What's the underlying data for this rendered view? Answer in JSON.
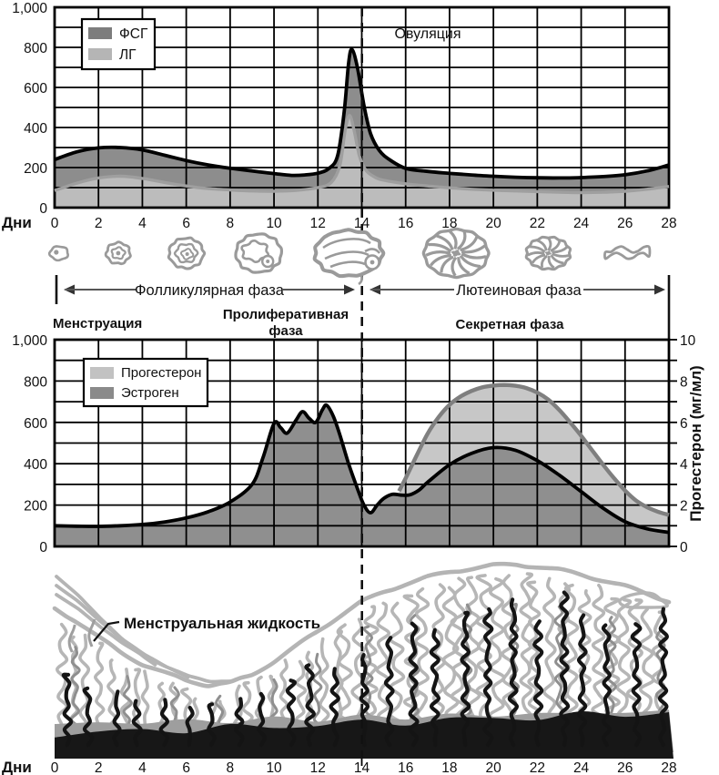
{
  "colors": {
    "fsh_fill": "#8d8d8d",
    "fsh_line": "#000000",
    "lh_fill": "#bcbcbc",
    "lh_line": "#9f9f9f",
    "estrogen_fill": "#8f8f8f",
    "estrogen_line": "#000000",
    "progesterone_fill": "#c7c7c7",
    "progesterone_line": "#7f7f7f",
    "grid": "#000000",
    "text": "#111111",
    "follicle": "#9a9a9a",
    "gland": "#b6b6b6",
    "vessel_black": "#141414",
    "vessel_gray": "#8f8f8f",
    "base_black": "#171717",
    "base_gray": "#9e9e9e",
    "surface": "#b4b4b4"
  },
  "top_chart": {
    "x_label": "Дни",
    "annotation": "Овуляция",
    "y_ticks": [
      "1,000",
      "800",
      "600",
      "400",
      "200",
      "0"
    ],
    "x_ticks": [
      "0",
      "2",
      "4",
      "6",
      "8",
      "10",
      "12",
      "14",
      "16",
      "18",
      "20",
      "22",
      "24",
      "26",
      "28"
    ],
    "legend": [
      {
        "label": "ФСГ",
        "color": "#7d7d7d"
      },
      {
        "label": "ЛГ",
        "color": "#b5b5b5"
      }
    ]
  },
  "mid_chart": {
    "y_ticks": [
      "1,000",
      "800",
      "600",
      "400",
      "200",
      "0"
    ],
    "y2_ticks": [
      "10",
      "8",
      "6",
      "4",
      "2",
      "0"
    ],
    "y2_title": "Прогестерон (мг/мл)",
    "legend": [
      {
        "label": "Прогестерон",
        "color": "#c2c2c2"
      },
      {
        "label": "Эстроген",
        "color": "#8a8a8a"
      }
    ]
  },
  "phases": {
    "follicular": "Фолликулярная фаза",
    "luteal": "Лютеиновая фаза",
    "menstruation": "Менструация",
    "proliferative_line1": "Пролиферативная",
    "proliferative_line2": "фаза",
    "secretory": "Секретная фаза"
  },
  "bottom": {
    "x_label": "Дни",
    "x_ticks": [
      "0",
      "2",
      "4",
      "6",
      "8",
      "10",
      "12",
      "14",
      "16",
      "18",
      "20",
      "22",
      "24",
      "26",
      "28"
    ],
    "fluid_label": "Менструальная жидкость"
  },
  "ovulation_day": 14,
  "follicle_stages": [
    {
      "icon": "primordial-follicle-icon",
      "day": 0.2
    },
    {
      "icon": "primary-follicle-icon",
      "day": 2.9
    },
    {
      "icon": "secondary-follicle-icon",
      "day": 6.0
    },
    {
      "icon": "graafian-follicle-icon",
      "day": 9.3
    },
    {
      "icon": "ovulating-follicle-icon",
      "day": 13.4
    },
    {
      "icon": "corpus-luteum-icon",
      "day": 18.3
    },
    {
      "icon": "corpus-luteum-late-icon",
      "day": 22.5
    },
    {
      "icon": "corpus-albicans-icon",
      "day": 26.1
    }
  ],
  "chart_data": [
    {
      "type": "area",
      "xlim": [
        0,
        28
      ],
      "ylim": [
        0,
        1000
      ],
      "x_label": "Дни",
      "grid": true,
      "legend_position": "top-left",
      "annotations": [
        "Овуляция"
      ],
      "series": [
        {
          "name": "ФСГ",
          "x": [
            0,
            1,
            2,
            3,
            4,
            5,
            6,
            7,
            8,
            9,
            10,
            10.8,
            11.4,
            12,
            12.5,
            12.9,
            13.2,
            13.4,
            13.55,
            13.8,
            14.1,
            14.4,
            14.8,
            15.3,
            16,
            17,
            18,
            19,
            20,
            21,
            22,
            23,
            24,
            25,
            26,
            27,
            28
          ],
          "values": [
            240,
            278,
            298,
            300,
            288,
            262,
            235,
            213,
            197,
            183,
            170,
            161,
            163,
            172,
            195,
            260,
            480,
            720,
            790,
            700,
            510,
            370,
            285,
            237,
            196,
            181,
            171,
            163,
            157,
            152,
            149,
            148,
            150,
            155,
            164,
            183,
            213
          ]
        },
        {
          "name": "ЛГ",
          "x": [
            0,
            1,
            2,
            3,
            4,
            5,
            6,
            7,
            8,
            9,
            10,
            11,
            12,
            12.6,
            13,
            13.25,
            13.45,
            13.65,
            13.9,
            14.2,
            14.6,
            15,
            16,
            17,
            18,
            19,
            20,
            21,
            22,
            23,
            24,
            25,
            26,
            27,
            28
          ],
          "values": [
            85,
            122,
            148,
            157,
            146,
            126,
            108,
            95,
            88,
            83,
            82,
            86,
            100,
            125,
            210,
            390,
            460,
            385,
            255,
            185,
            152,
            137,
            119,
            108,
            99,
            92,
            87,
            83,
            80,
            77,
            75,
            77,
            82,
            92,
            106
          ]
        }
      ]
    },
    {
      "type": "area",
      "xlim": [
        0,
        28
      ],
      "ylim": [
        0,
        1000
      ],
      "y2lim": [
        0,
        10
      ],
      "y2label": "Прогестерон (мг/мл)",
      "grid": true,
      "legend_position": "top-left",
      "series": [
        {
          "name": "Эстроген",
          "x": [
            0,
            1,
            2,
            3,
            4,
            5,
            6,
            7,
            8,
            9,
            9.5,
            10,
            10.3,
            10.6,
            11,
            11.3,
            11.6,
            11.9,
            12.2,
            12.4,
            12.7,
            13,
            13.4,
            13.8,
            14.1,
            14.4,
            14.7,
            15,
            15.4,
            15.8,
            16.2,
            16.6,
            17,
            18,
            19,
            20,
            21,
            22,
            23,
            24,
            25,
            26,
            27,
            28
          ],
          "values": [
            100,
            98,
            97,
            100,
            106,
            118,
            138,
            168,
            215,
            300,
            430,
            595,
            575,
            548,
            610,
            652,
            620,
            600,
            660,
            683,
            630,
            540,
            400,
            280,
            200,
            163,
            200,
            232,
            252,
            248,
            250,
            272,
            310,
            395,
            450,
            478,
            465,
            415,
            345,
            265,
            185,
            120,
            85,
            68
          ]
        },
        {
          "name": "Прогестерон",
          "x": [
            15.7,
            16,
            16.5,
            17,
            17.5,
            18,
            18.5,
            19,
            19.5,
            20,
            20.5,
            21,
            21.5,
            22,
            22.5,
            23,
            23.5,
            24,
            24.5,
            25,
            25.5,
            26,
            26.5,
            27,
            27.5,
            28
          ],
          "values": [
            268,
            330,
            440,
            545,
            625,
            685,
            725,
            752,
            770,
            778,
            781,
            777,
            766,
            744,
            710,
            660,
            600,
            535,
            465,
            395,
            330,
            270,
            222,
            190,
            168,
            152
          ]
        }
      ]
    },
    {
      "type": "area",
      "name": "эндометрий (относительная толщина)",
      "x": [
        0,
        1,
        2,
        3,
        4,
        5,
        6,
        7,
        8,
        9,
        10,
        11,
        12,
        13,
        14,
        15,
        16,
        17,
        18,
        19,
        20,
        21,
        22,
        23,
        24,
        25,
        26,
        27,
        28
      ],
      "values": [
        132,
        118,
        100,
        84,
        71,
        61,
        53,
        48,
        50,
        59,
        74,
        90,
        107,
        124,
        139,
        150,
        159,
        166,
        172,
        176,
        179,
        180,
        178,
        174,
        169,
        163,
        156,
        148,
        140
      ]
    }
  ]
}
